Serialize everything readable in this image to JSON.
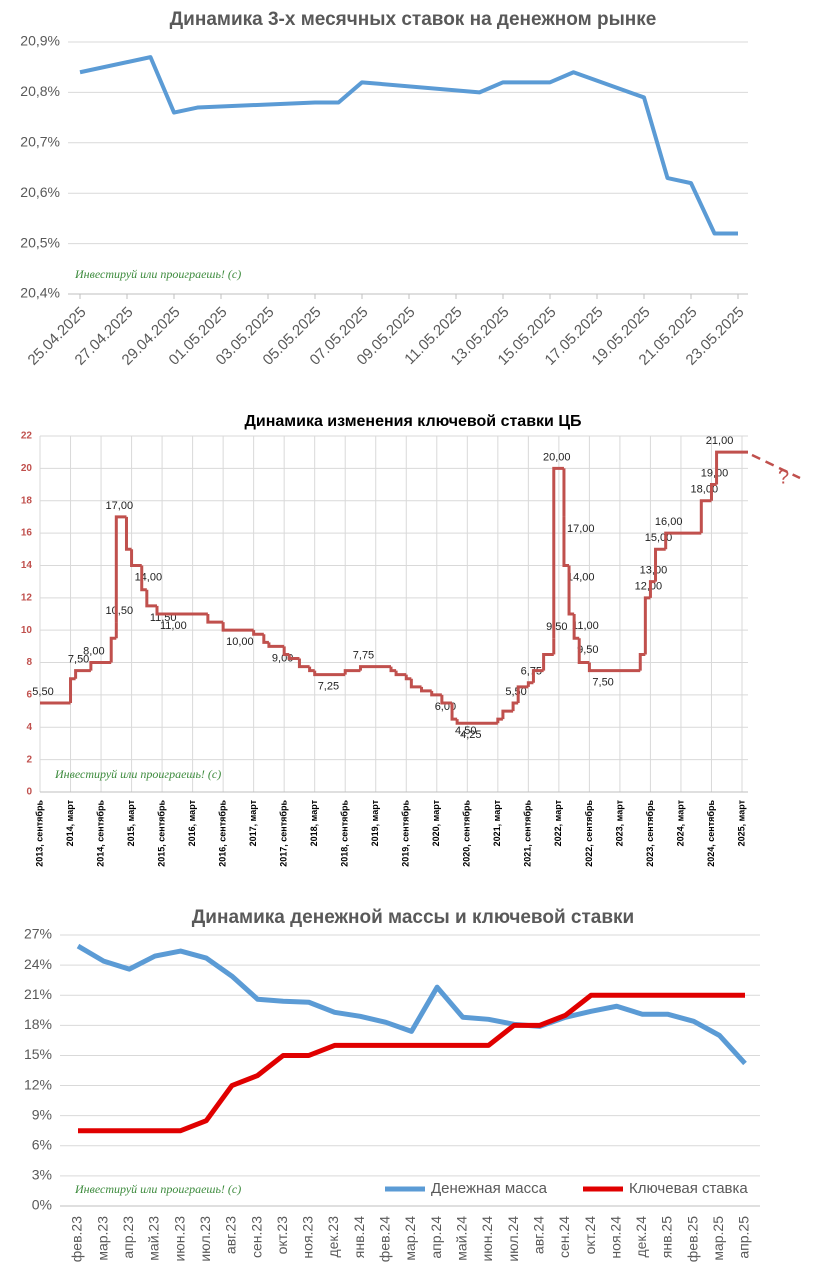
{
  "chart_data": [
    {
      "type": "line",
      "title": "Динамика 3-х месячных ставок на денежном рынке",
      "watermark": "Инвестируй или проиграешь! (с)",
      "x": [
        "25.04.2025",
        "28.04.2025",
        "29.04.2025",
        "30.04.2025",
        "05.05.2025",
        "06.05.2025",
        "07.05.2025",
        "12.05.2025",
        "13.05.2025",
        "14.05.2025",
        "15.05.2025",
        "16.05.2025",
        "19.05.2025",
        "20.05.2025",
        "21.05.2025",
        "22.05.2025",
        "23.05.2025"
      ],
      "series": [
        {
          "name": null,
          "color": "#5b9bd5",
          "values": [
            20.84,
            20.87,
            20.76,
            20.77,
            20.78,
            20.78,
            20.82,
            20.8,
            20.82,
            20.82,
            20.82,
            20.84,
            20.79,
            20.63,
            20.62,
            20.52,
            20.52
          ]
        }
      ],
      "xlim": [
        "25.04.2025",
        "23.05.2025"
      ],
      "xticks": [
        "25.04.2025",
        "27.04.2025",
        "29.04.2025",
        "01.05.2025",
        "03.05.2025",
        "05.05.2025",
        "07.05.2025",
        "09.05.2025",
        "11.05.2025",
        "13.05.2025",
        "15.05.2025",
        "17.05.2025",
        "19.05.2025",
        "21.05.2025",
        "23.05.2025"
      ],
      "ylim": [
        20.4,
        20.9
      ],
      "yticks": [
        {
          "value": 20.4,
          "label": "20,4%"
        },
        {
          "value": 20.5,
          "label": "20,5%"
        },
        {
          "value": 20.6,
          "label": "20,6%"
        },
        {
          "value": 20.7,
          "label": "20,7%"
        },
        {
          "value": 20.8,
          "label": "20,8%"
        },
        {
          "value": 20.9,
          "label": "20,9%"
        }
      ],
      "grid": true
    },
    {
      "type": "line",
      "step": true,
      "title": "Динамика изменения ключевой ставки ЦБ",
      "watermark": "Инвестируй или проиграешь! (с)",
      "note": "?",
      "x": [
        "2013-09",
        "2014-03",
        "2014-04",
        "2014-07",
        "2014-11",
        "2014-12",
        "2014-12",
        "2015-02",
        "2015-03",
        "2015-05",
        "2015-06",
        "2015-08",
        "2016-06",
        "2016-09",
        "2017-03",
        "2017-05",
        "2017-06",
        "2017-09",
        "2017-10",
        "2017-12",
        "2018-02",
        "2018-03",
        "2018-09",
        "2018-12",
        "2019-06",
        "2019-07",
        "2019-09",
        "2019-10",
        "2019-12",
        "2020-02",
        "2020-04",
        "2020-06",
        "2020-07",
        "2021-03",
        "2021-04",
        "2021-06",
        "2021-07",
        "2021-09",
        "2021-10",
        "2021-12",
        "2022-02",
        "2022-02",
        "2022-04",
        "2022-04",
        "2022-05",
        "2022-06",
        "2022-07",
        "2022-09",
        "2023-07",
        "2023-08",
        "2023-09",
        "2023-10",
        "2023-12",
        "2024-07",
        "2024-09",
        "2024-10"
      ],
      "series": [
        {
          "name": null,
          "color": "#c0504d",
          "values": [
            5.5,
            7,
            7.5,
            8,
            9.5,
            10.5,
            17,
            15,
            14,
            12.5,
            11.5,
            11,
            10.5,
            10,
            9.75,
            9.25,
            9,
            8.5,
            8.25,
            7.75,
            7.5,
            7.25,
            7.5,
            7.75,
            7.5,
            7.25,
            7,
            6.5,
            6.25,
            6,
            5.5,
            4.5,
            4.25,
            4.5,
            5,
            5.5,
            6.5,
            6.75,
            7.5,
            8.5,
            9.5,
            20,
            17,
            14,
            11,
            9.5,
            8,
            7.5,
            8.5,
            12,
            13,
            15,
            16,
            18,
            19,
            21
          ],
          "value_labels": [
            "5,50",
            null,
            "7,50",
            "8,00",
            null,
            "10,50",
            "17,00",
            null,
            "14,00",
            null,
            "11,50",
            "11,00",
            null,
            "10,00",
            null,
            null,
            "9,00",
            null,
            null,
            null,
            null,
            "7,25",
            null,
            "7,75",
            null,
            null,
            null,
            null,
            null,
            "6,00",
            null,
            "4,50",
            "4,25",
            null,
            null,
            "5,50",
            null,
            "6,75",
            null,
            null,
            "9,50",
            "20,00",
            "17,00",
            "14,00",
            "11,00",
            "9,50",
            null,
            "7,50",
            null,
            "12,00",
            "13,00",
            "15,00",
            "16,00",
            "18,00",
            "19,00",
            "21,00"
          ]
        }
      ],
      "xlim": [
        "2013-09",
        "2025-03"
      ],
      "xticks": [
        {
          "value": "2013-09",
          "label": "2013, сентябрь"
        },
        {
          "value": "2014-03",
          "label": "2014, март"
        },
        {
          "value": "2014-09",
          "label": "2014, сентябрь"
        },
        {
          "value": "2015-03",
          "label": "2015, март"
        },
        {
          "value": "2015-09",
          "label": "2015, сентябрь"
        },
        {
          "value": "2016-03",
          "label": "2016, март"
        },
        {
          "value": "2016-09",
          "label": "2016, сентябрь"
        },
        {
          "value": "2017-03",
          "label": "2017, март"
        },
        {
          "value": "2017-09",
          "label": "2017, сентябрь"
        },
        {
          "value": "2018-03",
          "label": "2018, март"
        },
        {
          "value": "2018-09",
          "label": "2018, сентябрь"
        },
        {
          "value": "2019-03",
          "label": "2019, март"
        },
        {
          "value": "2019-09",
          "label": "2019, сентябрь"
        },
        {
          "value": "2020-03",
          "label": "2020, март"
        },
        {
          "value": "2020-09",
          "label": "2020, сентябрь"
        },
        {
          "value": "2021-03",
          "label": "2021, март"
        },
        {
          "value": "2021-09",
          "label": "2021, сентябрь"
        },
        {
          "value": "2022-03",
          "label": "2022, март"
        },
        {
          "value": "2022-09",
          "label": "2022, сентябрь"
        },
        {
          "value": "2023-03",
          "label": "2023, март"
        },
        {
          "value": "2023-09",
          "label": "2023, сентябрь"
        },
        {
          "value": "2024-03",
          "label": "2024, март"
        },
        {
          "value": "2024-09",
          "label": "2024, сентябрь"
        },
        {
          "value": "2025-03",
          "label": "2025, март"
        }
      ],
      "ylim": [
        0,
        22
      ],
      "yticks": [
        0,
        2,
        4,
        6,
        8,
        10,
        12,
        14,
        16,
        18,
        20,
        22
      ],
      "grid": true
    },
    {
      "type": "line",
      "title": "Динамика денежной массы и ключевой ставки",
      "watermark": "Инвестируй или проиграешь! (с)",
      "categories": [
        "фев.23",
        "мар.23",
        "апр.23",
        "май.23",
        "июн.23",
        "июл.23",
        "авг.23",
        "сен.23",
        "окт.23",
        "ноя.23",
        "дек.23",
        "янв.24",
        "фев.24",
        "мар.24",
        "апр.24",
        "май.24",
        "июн.24",
        "июл.24",
        "авг.24",
        "сен.24",
        "окт.24",
        "ноя.24",
        "дек.24",
        "янв.25",
        "фев.25",
        "мар.25",
        "апр.25"
      ],
      "series": [
        {
          "name": "Денежная масса",
          "color": "#5b9bd5",
          "values": [
            25.9,
            24.4,
            23.6,
            24.9,
            25.4,
            24.7,
            22.9,
            20.6,
            20.4,
            20.3,
            19.3,
            18.9,
            18.3,
            17.4,
            21.8,
            18.8,
            18.6,
            18.1,
            17.9,
            18.8,
            19.4,
            19.9,
            19.1,
            19.1,
            18.4,
            17.0,
            14.2
          ]
        },
        {
          "name": "Ключевая ставка",
          "color": "#e00000",
          "values": [
            7.5,
            7.5,
            7.5,
            7.5,
            7.5,
            8.5,
            12,
            13,
            15,
            15,
            16,
            16,
            16,
            16,
            16,
            16,
            16,
            18,
            18,
            19,
            21,
            21,
            21,
            21,
            21,
            21,
            21
          ]
        }
      ],
      "ylim": [
        0,
        27
      ],
      "yticks": [
        {
          "value": 0,
          "label": "0%"
        },
        {
          "value": 3,
          "label": "3%"
        },
        {
          "value": 6,
          "label": "6%"
        },
        {
          "value": 9,
          "label": "9%"
        },
        {
          "value": 12,
          "label": "12%"
        },
        {
          "value": 15,
          "label": "15%"
        },
        {
          "value": 18,
          "label": "18%"
        },
        {
          "value": 21,
          "label": "21%"
        },
        {
          "value": 24,
          "label": "24%"
        },
        {
          "value": 27,
          "label": "27%"
        }
      ],
      "grid": true,
      "legend": "bottom-right"
    }
  ]
}
